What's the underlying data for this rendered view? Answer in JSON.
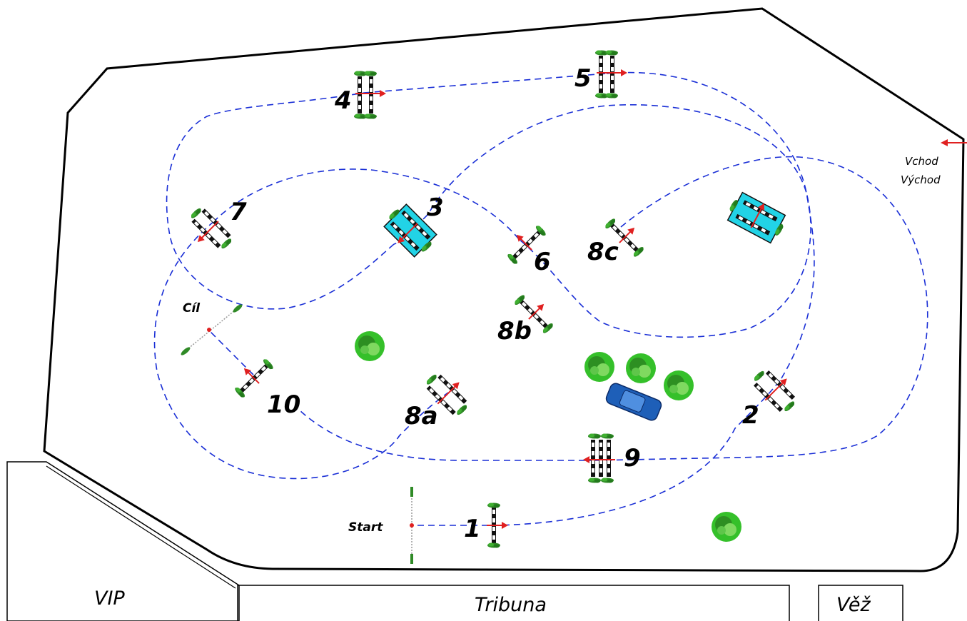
{
  "labels": {
    "start": "Start",
    "finish": "Cíl",
    "entrance": "Vchod",
    "exit": "Východ",
    "vip": "VIP",
    "tribune": "Tribuna",
    "tower": "Věž"
  },
  "obstacles": [
    {
      "id": "1",
      "label": "1",
      "kind": "vertical"
    },
    {
      "id": "2",
      "label": "2",
      "kind": "oxer"
    },
    {
      "id": "3",
      "label": "3",
      "kind": "water"
    },
    {
      "id": "4",
      "label": "4",
      "kind": "oxer"
    },
    {
      "id": "5",
      "label": "5",
      "kind": "oxer"
    },
    {
      "id": "6",
      "label": "6",
      "kind": "vertical"
    },
    {
      "id": "7",
      "label": "7",
      "kind": "oxer"
    },
    {
      "id": "8a",
      "label": "8a",
      "kind": "oxer"
    },
    {
      "id": "8b",
      "label": "8b",
      "kind": "vertical"
    },
    {
      "id": "8c",
      "label": "8c",
      "kind": "vertical"
    },
    {
      "id": "9",
      "label": "9",
      "kind": "triple"
    },
    {
      "id": "10",
      "label": "10",
      "kind": "vertical"
    }
  ],
  "colors": {
    "route": "#1a2fd6",
    "arrow": "#e02020",
    "water": "#22d3e6",
    "tree": "#3db52a",
    "car": "#1e5fb8",
    "grass": "#2f8a26"
  }
}
